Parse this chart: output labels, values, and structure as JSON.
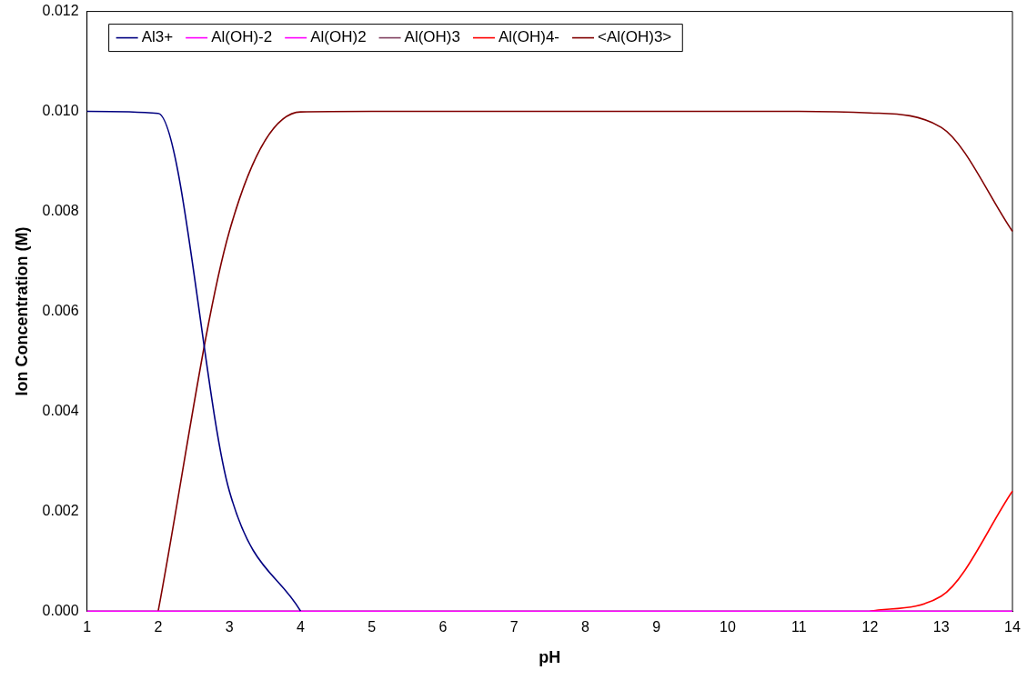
{
  "chart_data": {
    "type": "line",
    "xlabel": "pH",
    "ylabel": "Ion Concentration (M)",
    "x": [
      1,
      2,
      3,
      4,
      5,
      6,
      7,
      8,
      9,
      10,
      11,
      12,
      13,
      14
    ],
    "xlim": [
      1,
      14
    ],
    "xticks": [
      1,
      2,
      3,
      4,
      5,
      6,
      7,
      8,
      9,
      10,
      11,
      12,
      13,
      14
    ],
    "ylim": [
      0,
      0.012
    ],
    "yticks": [
      {
        "value": 0,
        "label": "0.000"
      },
      {
        "value": 0.002,
        "label": "0.002"
      },
      {
        "value": 0.004,
        "label": "0.004"
      },
      {
        "value": 0.006,
        "label": "0.006"
      },
      {
        "value": 0.008,
        "label": "0.008"
      },
      {
        "value": 0.01,
        "label": "0.010"
      },
      {
        "value": 0.012,
        "label": "0.012"
      }
    ],
    "grid": false,
    "legend": "top left",
    "marker": "none",
    "line_style": "solid",
    "series": [
      {
        "name": "Al3+",
        "color": "#000080",
        "values": [
          0.01,
          0.00996,
          0.0024,
          0,
          null,
          null,
          null,
          null,
          null,
          null,
          null,
          null,
          null,
          null
        ]
      },
      {
        "name": "Al(OH)-2",
        "color": "#ff00ff",
        "values": [
          0,
          0,
          0,
          0,
          0,
          0,
          0,
          0,
          0,
          0,
          0,
          0,
          0,
          0
        ]
      },
      {
        "name": "Al(OH)2",
        "color": "#ff00ff",
        "values": [
          null,
          null,
          null,
          null,
          null,
          null,
          null,
          null,
          null,
          null,
          null,
          null,
          null,
          null
        ]
      },
      {
        "name": "Al(OH)3",
        "color": "#804060",
        "values": [
          null,
          null,
          null,
          null,
          null,
          null,
          null,
          null,
          null,
          null,
          null,
          null,
          null,
          null
        ]
      },
      {
        "name": "Al(OH)4-",
        "color": "#ff0000",
        "values": [
          null,
          null,
          null,
          null,
          null,
          null,
          null,
          null,
          null,
          null,
          null,
          0,
          0.0003,
          0.0024
        ]
      },
      {
        "name": "<Al(OH)3>",
        "color": "#800000",
        "values": [
          null,
          0,
          0.0076,
          0.00999,
          0.01,
          0.01,
          0.01,
          0.01,
          0.01,
          0.01,
          0.01,
          0.00997,
          0.00968,
          0.0076
        ]
      }
    ]
  }
}
